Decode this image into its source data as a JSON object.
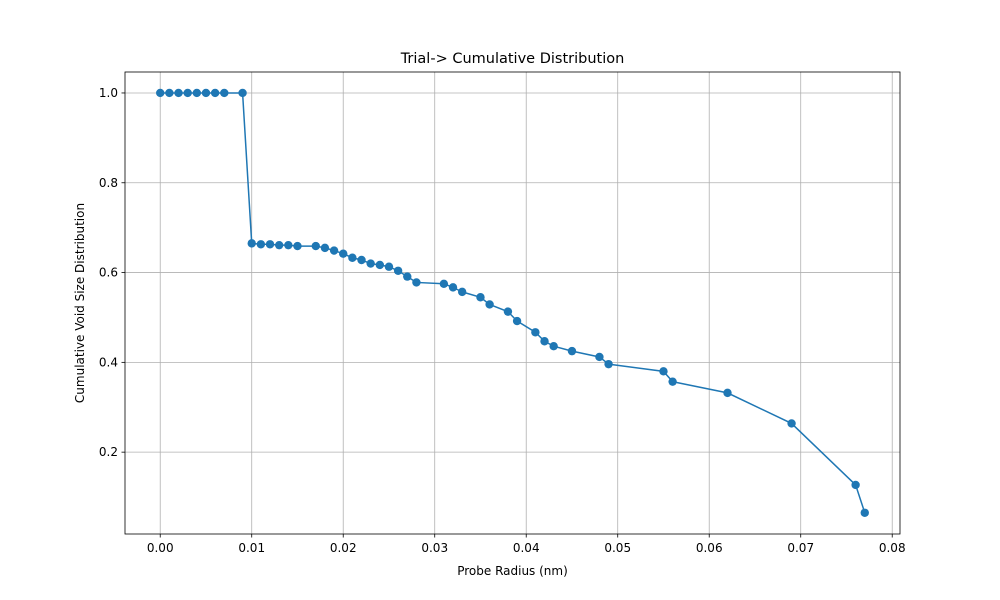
{
  "chart_data": {
    "type": "line",
    "title": "Trial-> Cumulative Distribution",
    "xlabel": "Probe Radius (nm)",
    "ylabel": "Cumulative Void Size Distribution",
    "xlim": [
      -0.00385,
      0.08085
    ],
    "ylim": [
      0.0177,
      1.0467
    ],
    "xticks": [
      0.0,
      0.01,
      0.02,
      0.03,
      0.04,
      0.05,
      0.06,
      0.07,
      0.08
    ],
    "xtick_labels": [
      "0.00",
      "0.01",
      "0.02",
      "0.03",
      "0.04",
      "0.05",
      "0.06",
      "0.07",
      "0.08"
    ],
    "yticks": [
      0.2,
      0.4,
      0.6,
      0.8,
      1.0
    ],
    "ytick_labels": [
      "0.2",
      "0.4",
      "0.6",
      "0.8",
      "1.0"
    ],
    "grid": true,
    "marker": "circle",
    "series": [
      {
        "color": "#1f77b4",
        "x": [
          0.0,
          0.001,
          0.002,
          0.003,
          0.004,
          0.005,
          0.006,
          0.007,
          0.009,
          0.01,
          0.011,
          0.012,
          0.013,
          0.014,
          0.015,
          0.017,
          0.018,
          0.019,
          0.02,
          0.021,
          0.022,
          0.023,
          0.024,
          0.025,
          0.026,
          0.027,
          0.028,
          0.031,
          0.032,
          0.033,
          0.035,
          0.036,
          0.038,
          0.039,
          0.041,
          0.042,
          0.043,
          0.045,
          0.048,
          0.049,
          0.055,
          0.056,
          0.062,
          0.069,
          0.076,
          0.077
        ],
        "y": [
          1.0,
          1.0,
          1.0,
          1.0,
          1.0,
          1.0,
          1.0,
          1.0,
          1.0,
          0.665,
          0.663,
          0.663,
          0.661,
          0.661,
          0.659,
          0.659,
          0.655,
          0.649,
          0.642,
          0.633,
          0.628,
          0.62,
          0.617,
          0.613,
          0.604,
          0.591,
          0.578,
          0.575,
          0.567,
          0.557,
          0.545,
          0.529,
          0.513,
          0.492,
          0.467,
          0.447,
          0.436,
          0.425,
          0.412,
          0.396,
          0.38,
          0.357,
          0.332,
          0.264,
          0.127,
          0.065
        ]
      }
    ]
  }
}
